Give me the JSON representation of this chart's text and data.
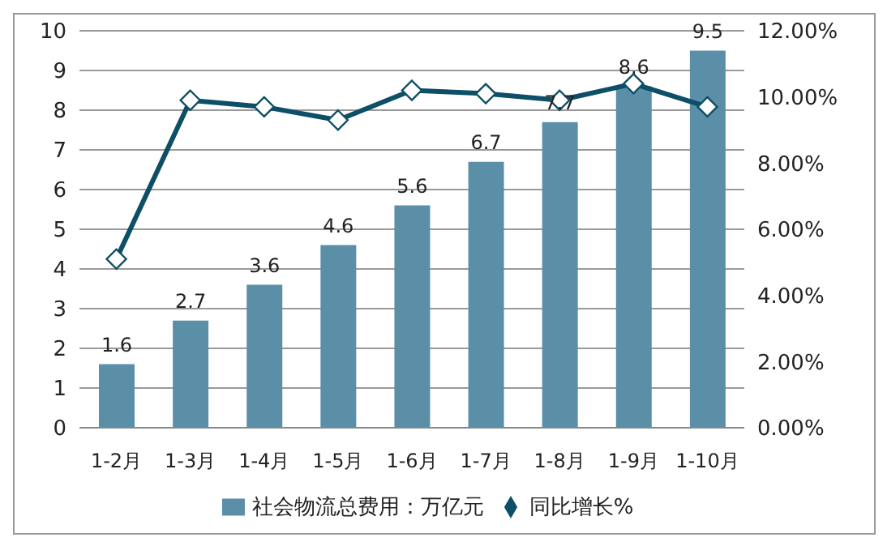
{
  "chart_data": {
    "type": "bar",
    "categories": [
      "1-2月",
      "1-3月",
      "1-4月",
      "1-5月",
      "1-6月",
      "1-7月",
      "1-8月",
      "1-9月",
      "1-10月"
    ],
    "series": [
      {
        "name": "社会物流总费用：万亿元",
        "color": "#5b8fa8",
        "values": [
          1.6,
          2.7,
          3.6,
          4.6,
          5.6,
          6.7,
          7.7,
          8.6,
          9.5
        ],
        "value_labels": [
          "1.6",
          "2.7",
          "3.6",
          "4.6",
          "5.6",
          "6.7",
          "7.7",
          "8.6",
          "9.5"
        ]
      },
      {
        "name": "同比增长%",
        "type": "line",
        "axis": "y2",
        "color": "#0d4f66",
        "marker": "diamond",
        "values": [
          5.1,
          9.9,
          9.7,
          9.3,
          10.2,
          10.1,
          9.9,
          10.4,
          9.7
        ]
      }
    ],
    "ylim": [
      0,
      10
    ],
    "yticks": [
      0,
      1,
      2,
      3,
      4,
      5,
      6,
      7,
      8,
      9,
      10
    ],
    "y2lim": [
      0,
      12
    ],
    "y2ticks": [
      {
        "value": 0,
        "label": "0.00%"
      },
      {
        "value": 2,
        "label": "2.00%"
      },
      {
        "value": 4,
        "label": "4.00%"
      },
      {
        "value": 6,
        "label": "6.00%"
      },
      {
        "value": 8,
        "label": "8.00%"
      },
      {
        "value": 10,
        "label": "10.00%"
      },
      {
        "value": 12,
        "label": "12.00%"
      }
    ],
    "grid": "y",
    "legend": "bottom"
  }
}
